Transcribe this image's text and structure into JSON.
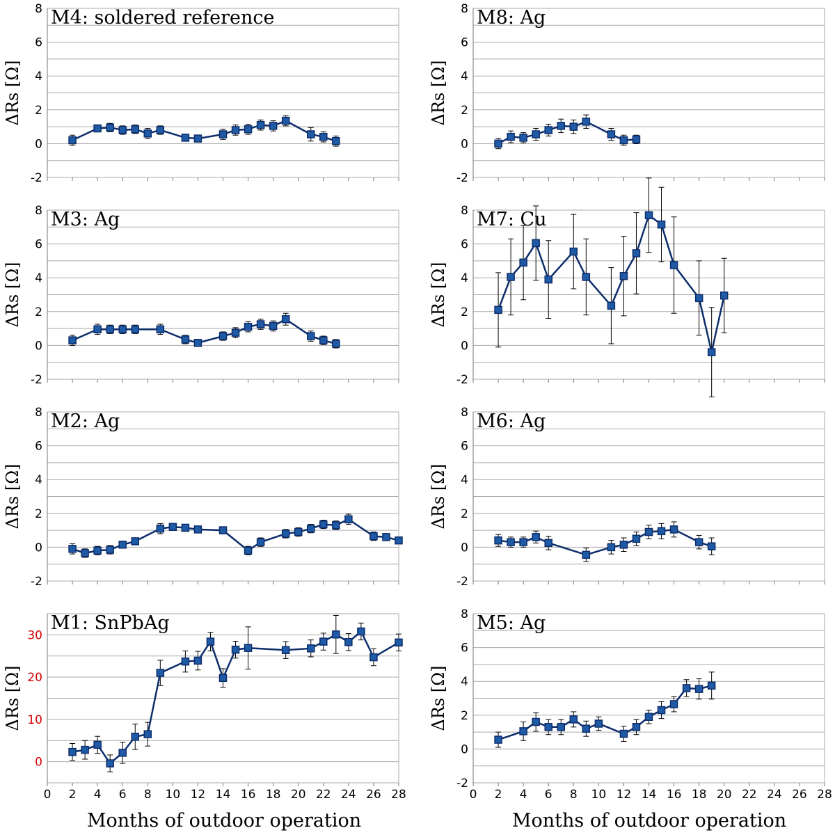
{
  "xlabel": "Months of outdoor operation",
  "colors": {
    "line": "#0d2d6b",
    "marker": "#1f5aa6",
    "grid": "#aaaaaa",
    "red_ticks": "#d40000"
  },
  "chart_data": [
    {
      "id": "M4",
      "type": "line",
      "title": "M4:  soldered reference",
      "ylabel": "ΔRs [Ω]",
      "ylim": [
        -2,
        8
      ],
      "yticks": [
        -2,
        0,
        2,
        4,
        6,
        8
      ],
      "xlim": [
        0,
        28
      ],
      "xticks": [],
      "x": [
        2,
        4,
        5,
        6,
        7,
        8,
        9,
        11,
        12,
        14,
        15,
        16,
        17,
        18,
        19,
        21,
        22,
        23
      ],
      "y": [
        0.2,
        0.9,
        0.95,
        0.8,
        0.85,
        0.6,
        0.8,
        0.35,
        0.3,
        0.55,
        0.8,
        0.85,
        1.1,
        1.05,
        1.35,
        0.55,
        0.4,
        0.15
      ],
      "err": [
        0.3,
        0.2,
        0.25,
        0.25,
        0.25,
        0.3,
        0.25,
        0.2,
        0.2,
        0.3,
        0.3,
        0.3,
        0.3,
        0.3,
        0.3,
        0.4,
        0.3,
        0.3
      ]
    },
    {
      "id": "M8",
      "type": "line",
      "title": "M8:  Ag",
      "ylabel": "ΔRs [Ω]",
      "ylim": [
        -2,
        8
      ],
      "yticks": [
        -2,
        0,
        2,
        4,
        6,
        8
      ],
      "xlim": [
        0,
        28
      ],
      "xticks": [],
      "x": [
        2,
        3,
        4,
        5,
        6,
        7,
        8,
        9,
        11,
        12,
        13
      ],
      "y": [
        0.0,
        0.4,
        0.35,
        0.55,
        0.8,
        1.05,
        1.0,
        1.3,
        0.55,
        0.2,
        0.25
      ],
      "err": [
        0.3,
        0.35,
        0.3,
        0.35,
        0.35,
        0.4,
        0.4,
        0.4,
        0.35,
        0.3,
        0.25
      ]
    },
    {
      "id": "M3",
      "type": "line",
      "title": "M3:  Ag",
      "ylabel": "ΔRs [Ω]",
      "ylim": [
        -2,
        8
      ],
      "yticks": [
        -2,
        0,
        2,
        4,
        6,
        8
      ],
      "xlim": [
        0,
        28
      ],
      "xticks": [],
      "x": [
        2,
        4,
        5,
        6,
        7,
        9,
        11,
        12,
        14,
        15,
        16,
        17,
        18,
        19,
        21,
        22,
        23
      ],
      "y": [
        0.3,
        0.95,
        0.95,
        0.95,
        0.95,
        0.95,
        0.35,
        0.15,
        0.55,
        0.75,
        1.1,
        1.25,
        1.15,
        1.55,
        0.55,
        0.3,
        0.1
      ],
      "err": [
        0.3,
        0.3,
        0.25,
        0.25,
        0.25,
        0.3,
        0.25,
        0.2,
        0.25,
        0.3,
        0.3,
        0.3,
        0.3,
        0.35,
        0.3,
        0.25,
        0.25
      ]
    },
    {
      "id": "M7",
      "type": "line",
      "title": "M7:  Cu",
      "ylabel": "ΔRs [Ω]",
      "ylim": [
        -2,
        8
      ],
      "yticks": [
        -2,
        0,
        2,
        4,
        6,
        8
      ],
      "xlim": [
        0,
        28
      ],
      "xticks": [],
      "x": [
        2,
        3,
        4,
        5,
        6,
        8,
        9,
        11,
        12,
        13,
        14,
        15,
        16,
        18,
        19,
        20
      ],
      "y": [
        2.1,
        4.05,
        4.9,
        6.05,
        3.9,
        5.55,
        4.05,
        2.35,
        4.1,
        5.45,
        7.7,
        7.15,
        4.75,
        2.8,
        -0.4,
        2.95
      ],
      "err": [
        2.2,
        2.25,
        2.2,
        2.2,
        2.3,
        2.2,
        2.25,
        2.25,
        2.35,
        2.4,
        2.2,
        2.2,
        2.85,
        2.2,
        2.65,
        2.2
      ]
    },
    {
      "id": "M2",
      "type": "line",
      "title": "M2:  Ag",
      "ylabel": "ΔRs [Ω]",
      "ylim": [
        -2,
        8
      ],
      "yticks": [
        -2,
        0,
        2,
        4,
        6,
        8
      ],
      "xlim": [
        0,
        28
      ],
      "xticks": [],
      "x": [
        2,
        3,
        4,
        5,
        6,
        7,
        9,
        10,
        11,
        12,
        14,
        16,
        17,
        19,
        20,
        21,
        22,
        23,
        24,
        26,
        27,
        28
      ],
      "y": [
        -0.1,
        -0.35,
        -0.2,
        -0.15,
        0.15,
        0.35,
        1.1,
        1.2,
        1.15,
        1.05,
        1.0,
        -0.2,
        0.3,
        0.8,
        0.9,
        1.1,
        1.35,
        1.3,
        1.65,
        0.65,
        0.6,
        0.4
      ],
      "err": [
        0.3,
        0.25,
        0.25,
        0.25,
        0.2,
        0.2,
        0.3,
        0.2,
        0.2,
        0.2,
        0.2,
        0.25,
        0.25,
        0.25,
        0.25,
        0.25,
        0.25,
        0.25,
        0.3,
        0.25,
        0.2,
        0.2
      ]
    },
    {
      "id": "M6",
      "type": "line",
      "title": "M6:  Ag",
      "ylabel": "ΔRs [Ω]",
      "ylim": [
        -2,
        8
      ],
      "yticks": [
        -2,
        0,
        2,
        4,
        6,
        8
      ],
      "xlim": [
        0,
        28
      ],
      "xticks": [],
      "x": [
        2,
        3,
        4,
        5,
        6,
        9,
        11,
        12,
        13,
        14,
        15,
        16,
        18,
        19
      ],
      "y": [
        0.4,
        0.3,
        0.3,
        0.6,
        0.25,
        -0.45,
        0.0,
        0.15,
        0.5,
        0.9,
        0.95,
        1.05,
        0.3,
        0.05
      ],
      "err": [
        0.35,
        0.3,
        0.3,
        0.35,
        0.4,
        0.4,
        0.4,
        0.4,
        0.4,
        0.4,
        0.45,
        0.45,
        0.4,
        0.5
      ]
    },
    {
      "id": "M1",
      "type": "line",
      "title": "M1:  SnPbAg",
      "ylabel": "ΔRs [Ω]",
      "ylim": [
        -5,
        35
      ],
      "yticks": [
        0,
        10,
        20,
        30
      ],
      "ytick_color": "red",
      "ygrid_step": 5,
      "xlim": [
        0,
        28
      ],
      "xticks": [
        0,
        2,
        4,
        6,
        8,
        10,
        12,
        14,
        16,
        18,
        20,
        22,
        24,
        26,
        28
      ],
      "x": [
        2,
        3,
        4,
        5,
        6,
        7,
        8,
        9,
        11,
        12,
        13,
        14,
        15,
        16,
        19,
        21,
        22,
        23,
        24,
        25,
        26,
        28
      ],
      "y": [
        2.3,
        2.8,
        4.0,
        -0.4,
        2.1,
        5.9,
        6.5,
        21.0,
        23.7,
        23.9,
        28.4,
        19.8,
        26.5,
        26.9,
        26.4,
        26.8,
        28.4,
        30.1,
        28.3,
        30.8,
        24.7,
        28.2
      ],
      "err": [
        2.0,
        2.2,
        2.0,
        2.0,
        2.5,
        3.0,
        2.8,
        3.0,
        2.5,
        2.2,
        2.2,
        2.2,
        2.0,
        5.0,
        2.0,
        2.0,
        2.0,
        4.5,
        2.0,
        2.0,
        2.0,
        2.0
      ]
    },
    {
      "id": "M5",
      "type": "line",
      "title": "M5:  Ag",
      "ylabel": "ΔRs [Ω]",
      "ylim": [
        -2,
        8
      ],
      "yticks": [
        -2,
        0,
        2,
        4,
        6,
        8
      ],
      "xlim": [
        0,
        28
      ],
      "xticks": [
        0,
        2,
        4,
        6,
        8,
        10,
        12,
        14,
        16,
        18,
        20,
        22,
        24,
        26,
        28
      ],
      "x": [
        2,
        4,
        5,
        6,
        7,
        8,
        9,
        10,
        12,
        13,
        14,
        15,
        16,
        17,
        18,
        19
      ],
      "y": [
        0.55,
        1.05,
        1.6,
        1.3,
        1.3,
        1.75,
        1.2,
        1.5,
        0.9,
        1.3,
        1.9,
        2.3,
        2.65,
        3.6,
        3.55,
        3.75
      ],
      "err": [
        0.45,
        0.55,
        0.55,
        0.45,
        0.45,
        0.45,
        0.45,
        0.4,
        0.45,
        0.45,
        0.4,
        0.5,
        0.45,
        0.5,
        0.6,
        0.8
      ]
    }
  ]
}
